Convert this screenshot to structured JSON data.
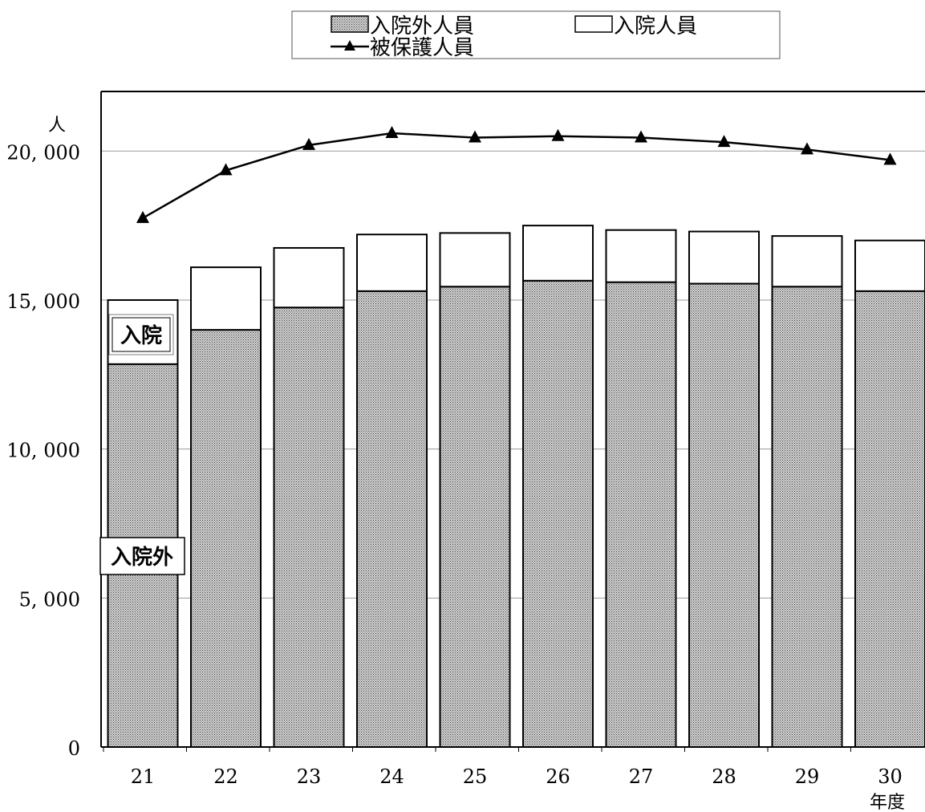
{
  "chart_data": {
    "type": "bar",
    "stacked": true,
    "categories": [
      "21",
      "22",
      "23",
      "24",
      "25",
      "26",
      "27",
      "28",
      "29",
      "30"
    ],
    "series": [
      {
        "name": "入院外人員",
        "kind": "bar",
        "fill": "stipple-gray",
        "values": [
          12850,
          14000,
          14750,
          15300,
          15450,
          15650,
          15600,
          15550,
          15450,
          15300
        ]
      },
      {
        "name": "入院人員",
        "kind": "bar",
        "fill": "#ffffff",
        "values": [
          2150,
          2100,
          2000,
          1900,
          1800,
          1850,
          1750,
          1750,
          1700,
          1700
        ]
      },
      {
        "name": "被保護人員",
        "kind": "line",
        "marker": "triangle",
        "values": [
          17750,
          19350,
          20200,
          20600,
          20450,
          20500,
          20450,
          20300,
          20050,
          19700
        ]
      }
    ],
    "ylim": [
      0,
      22000
    ],
    "yticks": [
      0,
      5000,
      10000,
      15000,
      20000
    ],
    "ytick_labels": [
      "0",
      "5, 000",
      "10, 000",
      "15, 000",
      "20, 000"
    ],
    "ylabel": "人",
    "xlabel": "年度",
    "grid": "horizontal",
    "legend_position": "top",
    "annotations": [
      {
        "text": "入院",
        "series": 1,
        "category": 0
      },
      {
        "text": "入院外",
        "series": 0,
        "category": 0
      }
    ],
    "colors": {
      "line": "#000000",
      "bar_border": "#000000",
      "grid": "#9a9a9a"
    }
  }
}
